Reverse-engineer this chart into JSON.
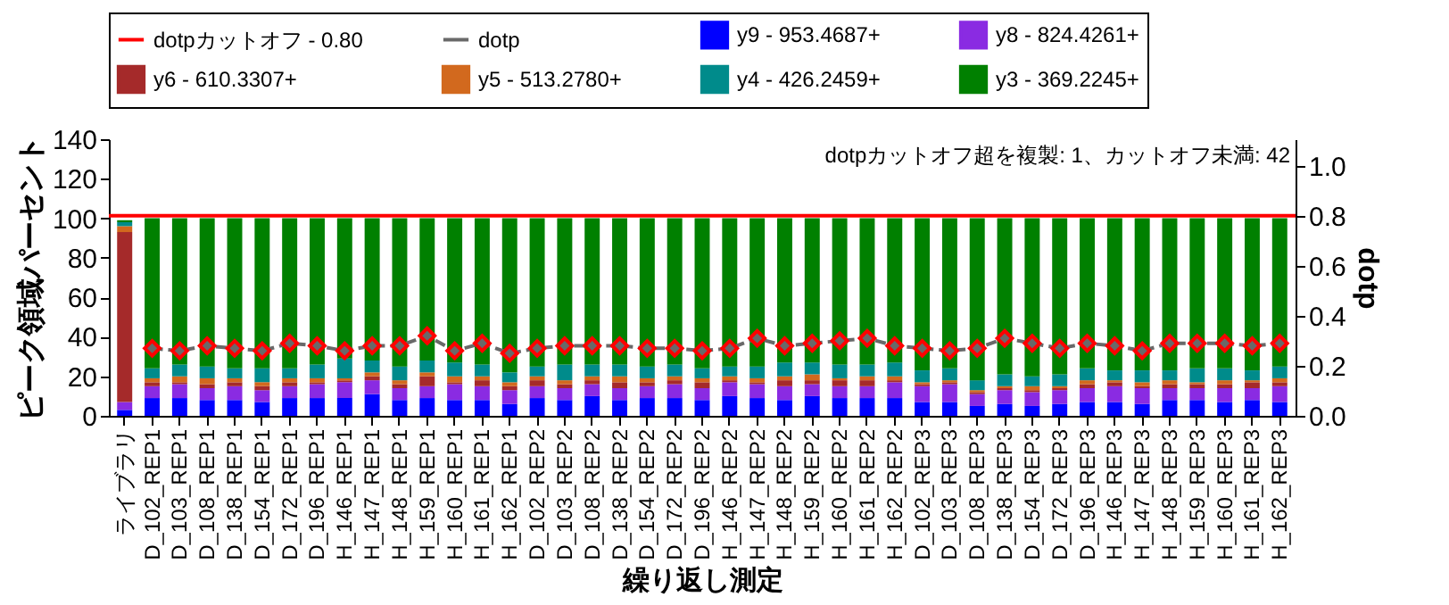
{
  "chart_data": {
    "type": "bar",
    "stacked": true,
    "xlabel": "繰り返し測定",
    "ylabel": "ピーク領域パーセント",
    "y2label": "dotp",
    "annotations": [
      "dotpカットオフ超を複製: 1、カットオフ未満: 42"
    ],
    "categories": [
      "ライブラリ",
      "D_102_REP1",
      "D_103_REP1",
      "D_108_REP1",
      "D_138_REP1",
      "D_154_REP1",
      "D_172_REP1",
      "D_196_REP1",
      "H_146_REP1",
      "H_147_REP1",
      "H_148_REP1",
      "H_159_REP1",
      "H_160_REP1",
      "H_161_REP1",
      "H_162_REP1",
      "D_102_REP2",
      "D_103_REP2",
      "D_108_REP2",
      "D_138_REP2",
      "D_154_REP2",
      "D_172_REP2",
      "D_196_REP2",
      "H_146_REP2",
      "H_147_REP2",
      "H_148_REP2",
      "H_159_REP2",
      "H_160_REP2",
      "H_161_REP2",
      "H_162_REP2",
      "D_102_REP3",
      "D_103_REP3",
      "D_108_REP3",
      "D_138_REP3",
      "D_154_REP3",
      "D_172_REP3",
      "D_196_REP3",
      "H_146_REP3",
      "H_147_REP3",
      "H_148_REP3",
      "H_159_REP3",
      "H_160_REP3",
      "H_161_REP3",
      "H_162_REP3"
    ],
    "series": [
      {
        "name": "y9 - 953.4687+",
        "color": "#0000ff",
        "values": [
          3,
          9,
          9,
          8,
          8,
          7,
          9,
          9,
          9,
          11,
          8,
          9,
          8,
          8,
          6,
          9,
          8,
          10,
          8,
          9,
          9,
          8,
          10,
          9,
          8,
          10,
          9,
          9,
          9,
          7,
          7,
          5,
          6,
          5,
          6,
          7,
          7,
          6,
          8,
          8,
          7,
          8,
          7
        ]
      },
      {
        "name": "y8 - 824.4261+",
        "color": "#8a2be2",
        "values": [
          4,
          6,
          7,
          6,
          7,
          6,
          6,
          7,
          8,
          7,
          6,
          6,
          8,
          7,
          7,
          6,
          6,
          6,
          6,
          6,
          7,
          6,
          7,
          7,
          7,
          6,
          6,
          6,
          8,
          8,
          9,
          6,
          7,
          7,
          7,
          7,
          8,
          8,
          6,
          6,
          7,
          6,
          8
        ]
      },
      {
        "name": "y6 - 610.3307+",
        "color": "#a52a2a",
        "values": [
          86,
          2,
          1,
          2,
          2,
          2,
          2,
          1,
          1,
          2,
          2,
          5,
          1,
          3,
          2,
          3,
          2,
          2,
          3,
          2,
          2,
          3,
          1,
          1,
          3,
          2,
          3,
          3,
          1,
          1,
          1,
          1,
          1,
          1,
          1,
          2,
          2,
          1,
          2,
          2,
          2,
          3,
          2
        ]
      },
      {
        "name": "y5 - 513.2780+",
        "color": "#d2691e",
        "values": [
          3,
          2,
          3,
          3,
          2,
          2,
          2,
          2,
          1,
          2,
          2,
          2,
          3,
          2,
          2,
          2,
          2,
          2,
          3,
          2,
          2,
          2,
          2,
          2,
          2,
          3,
          1,
          2,
          2,
          1,
          1,
          1,
          1,
          2,
          1,
          2,
          1,
          2,
          2,
          1,
          2,
          1,
          2
        ]
      },
      {
        "name": "y4 - 426.2459+",
        "color": "#008b8b",
        "values": [
          2,
          5,
          6,
          6,
          5,
          7,
          5,
          7,
          10,
          6,
          7,
          6,
          7,
          6,
          5,
          5,
          8,
          6,
          6,
          6,
          6,
          5,
          5,
          6,
          7,
          6,
          7,
          6,
          7,
          6,
          6,
          5,
          6,
          5,
          6,
          6,
          5,
          6,
          5,
          7,
          6,
          5,
          6
        ]
      },
      {
        "name": "y3 - 369.2245+",
        "color": "#008000",
        "values": [
          1,
          76,
          74,
          75,
          76,
          76,
          76,
          74,
          71,
          72,
          75,
          72,
          73,
          74,
          78,
          75,
          74,
          74,
          74,
          75,
          74,
          76,
          75,
          75,
          73,
          73,
          74,
          74,
          73,
          77,
          76,
          82,
          79,
          80,
          79,
          76,
          77,
          77,
          77,
          76,
          76,
          77,
          75
        ]
      },
      {
        "name": "dotp",
        "type": "line",
        "axis": "y2",
        "color": "#696969",
        "marker": "diamond",
        "line_style": "dashed",
        "values": [
          null,
          0.27,
          0.26,
          0.28,
          0.27,
          0.26,
          0.29,
          0.28,
          0.26,
          0.28,
          0.28,
          0.32,
          0.26,
          0.29,
          0.25,
          0.27,
          0.28,
          0.28,
          0.28,
          0.27,
          0.27,
          0.26,
          0.27,
          0.31,
          0.28,
          0.29,
          0.3,
          0.31,
          0.28,
          0.27,
          0.26,
          0.27,
          0.31,
          0.29,
          0.27,
          0.29,
          0.28,
          0.26,
          0.29,
          0.29,
          0.29,
          0.28,
          0.29
        ]
      }
    ],
    "ref_lines": [
      {
        "axis": "y2",
        "value": 0.8,
        "label": "dotpカットオフ - 0.80",
        "color": "#ff0000"
      }
    ],
    "ylim": [
      0,
      140
    ],
    "yticks": [
      0,
      20,
      40,
      60,
      80,
      100,
      120,
      140
    ],
    "y2lim": [
      0,
      1.106
    ],
    "y2ticks": [
      {
        "value": 0,
        "label": "0.0"
      },
      {
        "value": 0.2,
        "label": "0.2"
      },
      {
        "value": 0.4,
        "label": "0.4"
      },
      {
        "value": 0.6,
        "label": "0.6"
      },
      {
        "value": 0.8,
        "label": "0.8"
      },
      {
        "value": 1,
        "label": "1.0"
      }
    ],
    "legend": "top",
    "grid": false
  }
}
